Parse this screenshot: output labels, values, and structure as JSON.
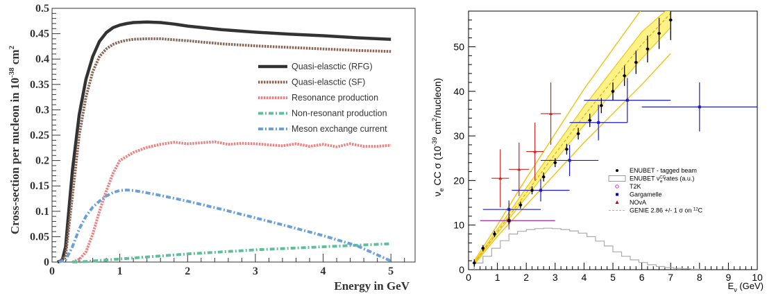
{
  "chart_data": [
    {
      "type": "line",
      "xlabel": "Energy in GeV",
      "ylabel": "Cross-section per nucleon in 10",
      "ylabel_exponent": "-38",
      "ylabel_unit": " cm",
      "ylabel_unit_exponent": "2",
      "xlim": [
        0,
        5.5
      ],
      "ylim": [
        0,
        0.5
      ],
      "x_ticks": [
        "0",
        "1",
        "2",
        "3",
        "4",
        "5"
      ],
      "y_ticks": [
        "0",
        "0.05",
        "0.1",
        "0.15",
        "0.2",
        "0.25",
        "0.3",
        "0.35",
        "0.4",
        "0.45",
        "0.5"
      ],
      "legend_position": "right",
      "series": [
        {
          "name": "Quasi-elasctic (RFG)",
          "color": "#333333",
          "style": "solid",
          "x": [
            0.08,
            0.15,
            0.2,
            0.3,
            0.4,
            0.5,
            0.6,
            0.7,
            0.8,
            0.9,
            1.0,
            1.1,
            1.2,
            1.4,
            1.6,
            1.8,
            2.0,
            2.5,
            3.0,
            3.5,
            4.0,
            4.5,
            5.0
          ],
          "y": [
            0,
            0.003,
            0.03,
            0.18,
            0.29,
            0.36,
            0.405,
            0.435,
            0.452,
            0.462,
            0.467,
            0.47,
            0.472,
            0.473,
            0.472,
            0.469,
            0.465,
            0.458,
            0.453,
            0.449,
            0.446,
            0.442,
            0.439
          ]
        },
        {
          "name": "Quasi-elasctic (SF)",
          "color": "#8b6454",
          "style": "dotted",
          "x": [
            0.1,
            0.2,
            0.3,
            0.4,
            0.5,
            0.6,
            0.7,
            0.8,
            0.9,
            1.0,
            1.1,
            1.2,
            1.4,
            1.6,
            1.8,
            2.0,
            2.5,
            3.0,
            3.5,
            4.0,
            4.5,
            5.0
          ],
          "y": [
            0,
            0.012,
            0.13,
            0.25,
            0.325,
            0.375,
            0.405,
            0.42,
            0.429,
            0.434,
            0.437,
            0.439,
            0.44,
            0.44,
            0.438,
            0.436,
            0.43,
            0.426,
            0.423,
            0.42,
            0.417,
            0.415
          ]
        },
        {
          "name": "Resonance production",
          "color": "#f08080",
          "style": "dotted",
          "x": [
            0.3,
            0.4,
            0.5,
            0.6,
            0.7,
            0.8,
            0.9,
            1.0,
            1.2,
            1.4,
            1.6,
            1.8,
            2.0,
            2.2,
            2.4,
            2.6,
            2.8,
            3.0,
            3.2,
            3.4,
            3.6,
            3.8,
            4.0,
            4.2,
            4.4,
            4.6,
            4.8,
            5.0
          ],
          "y": [
            0,
            0.005,
            0.02,
            0.055,
            0.1,
            0.14,
            0.175,
            0.2,
            0.216,
            0.226,
            0.232,
            0.236,
            0.233,
            0.235,
            0.237,
            0.232,
            0.234,
            0.233,
            0.231,
            0.229,
            0.233,
            0.228,
            0.232,
            0.227,
            0.233,
            0.228,
            0.228,
            0.23
          ]
        },
        {
          "name": "Non-resonant production",
          "color": "#5fbf9a",
          "style": "dashdot",
          "x": [
            0.3,
            0.5,
            1.0,
            1.5,
            2.0,
            2.5,
            3.0,
            3.5,
            4.0,
            4.5,
            5.0
          ],
          "y": [
            0,
            0.001,
            0.006,
            0.011,
            0.016,
            0.02,
            0.024,
            0.027,
            0.03,
            0.033,
            0.036
          ]
        },
        {
          "name": "Meson exchange current",
          "color": "#6a9fd8",
          "style": "dashdot",
          "x": [
            0.1,
            0.2,
            0.3,
            0.4,
            0.5,
            0.6,
            0.7,
            0.8,
            0.9,
            1.0,
            1.1,
            1.2,
            1.5,
            2.0,
            2.5,
            3.0,
            3.5,
            4.0,
            4.5,
            5.0
          ],
          "y": [
            0,
            0.004,
            0.03,
            0.065,
            0.09,
            0.108,
            0.12,
            0.13,
            0.137,
            0.141,
            0.142,
            0.141,
            0.134,
            0.12,
            0.104,
            0.087,
            0.07,
            0.052,
            0.032,
            0.002
          ]
        }
      ]
    },
    {
      "type": "scatter",
      "xlabel_main": "E",
      "xlabel_sub": "ν",
      "xlabel_unit": " (GeV)",
      "ylabel_main": "ν",
      "ylabel_sub": "e",
      "ylabel_rest": " CC σ (10",
      "ylabel_exp": "-39",
      "ylabel_unit": " cm",
      "ylabel_unit_exp": "2",
      "ylabel_end": "/nucleon)",
      "xlim": [
        0,
        10
      ],
      "ylim": [
        0,
        58
      ],
      "x_ticks": [
        "0",
        "1",
        "2",
        "3",
        "4",
        "5",
        "6",
        "7",
        "8",
        "9",
        "10"
      ],
      "y_ticks": [
        "0",
        "10",
        "20",
        "30",
        "40",
        "50"
      ],
      "legend_position": "bottom-right",
      "legend": [
        {
          "label": "ENUBET - tagged beam",
          "marker": "dot",
          "color": "#000000"
        },
        {
          "label": "ENUBET ν",
          "sub": "e",
          "sup": "CC",
          "tail": " rates (a.u.)",
          "marker": "box",
          "color": "#999999"
        },
        {
          "label": "T2K",
          "marker": "circle",
          "color": "#cc33cc"
        },
        {
          "label": "Gargamelle",
          "marker": "square",
          "color": "#0000cc"
        },
        {
          "label": "NOvA",
          "marker": "triangle",
          "color": "#cc0000"
        },
        {
          "label": "GENIE 2.86 +/- 1 σ on ",
          "sup": "12",
          "tail": "C",
          "marker": "dashed-line",
          "color": "#e8b800"
        }
      ],
      "enubet": {
        "x": [
          0.2,
          0.5,
          0.9,
          1.4,
          1.8,
          2.2,
          2.6,
          3.0,
          3.4,
          3.8,
          4.2,
          4.6,
          5.0,
          5.4,
          5.8,
          6.2,
          6.6,
          7.0
        ],
        "y": [
          1.5,
          4.8,
          8.0,
          11.0,
          14.5,
          17.8,
          20.8,
          24.0,
          27.0,
          30.5,
          33.5,
          36.8,
          40.0,
          43.5,
          46.5,
          49.5,
          53.0,
          56.0
        ],
        "err": [
          0.8,
          0.7,
          0.7,
          0.8,
          0.8,
          0.9,
          1.0,
          1.0,
          1.2,
          1.3,
          1.5,
          1.7,
          2.0,
          2.3,
          2.6,
          3.0,
          3.5,
          4.5
        ]
      },
      "gargamelle": {
        "x": [
          1.4,
          2.5,
          3.5,
          4.5,
          5.5,
          8.0
        ],
        "y": [
          13.5,
          17.8,
          24.5,
          33.0,
          38.0,
          36.5
        ],
        "xlo": [
          0.5,
          1.5,
          2.5,
          3.5,
          4.0,
          6.0
        ],
        "xhi": [
          2.5,
          3.5,
          4.5,
          5.5,
          7.0,
          10.0
        ],
        "err": [
          2.0,
          2.5,
          3.5,
          4.0,
          5.0,
          5.5
        ]
      },
      "nova": {
        "x": [
          1.1,
          1.75,
          2.3,
          2.85
        ],
        "y": [
          20.5,
          22.5,
          26.5,
          35.0
        ],
        "xlo": [
          0.8,
          1.4,
          2.0,
          2.5
        ],
        "xhi": [
          1.4,
          2.1,
          2.6,
          3.2
        ],
        "err": [
          6.5,
          6.0,
          6.5,
          7.0
        ]
      },
      "t2k": {
        "x": [
          1.4
        ],
        "y": [
          11.0
        ],
        "xlo": [
          0.4
        ],
        "xhi": [
          3.0
        ],
        "err": [
          2.0
        ]
      },
      "genie": {
        "x": [
          0.2,
          1.0,
          2.0,
          3.0,
          4.0,
          5.0,
          6.0,
          7.0
        ],
        "central": [
          1.5,
          8.5,
          17.2,
          26.0,
          34.5,
          42.5,
          50.5,
          57.5
        ],
        "lo": [
          1.2,
          7.5,
          14.5,
          21.5,
          28.5,
          35.0,
          41.5,
          48.5
        ],
        "hi": [
          2.0,
          10.0,
          20.5,
          30.5,
          40.5,
          49.5,
          58.5,
          62.0
        ]
      },
      "rates_hist": {
        "edges": [
          0.2,
          0.5,
          0.8,
          1.1,
          1.4,
          1.7,
          2.0,
          2.3,
          2.6,
          2.9,
          3.2,
          3.5,
          3.8,
          4.1,
          4.4,
          4.7,
          5.0,
          5.3,
          5.6,
          5.9,
          6.2,
          6.5,
          6.8,
          7.1,
          7.4,
          7.7,
          8.0
        ],
        "values": [
          1.5,
          3.0,
          4.8,
          6.5,
          8.0,
          8.6,
          9.0,
          9.2,
          9.3,
          9.2,
          9.0,
          8.7,
          8.2,
          7.4,
          6.4,
          5.3,
          4.0,
          3.0,
          2.2,
          1.6,
          1.1,
          0.7,
          0.5,
          0.3,
          0.2,
          0.1
        ]
      }
    }
  ]
}
